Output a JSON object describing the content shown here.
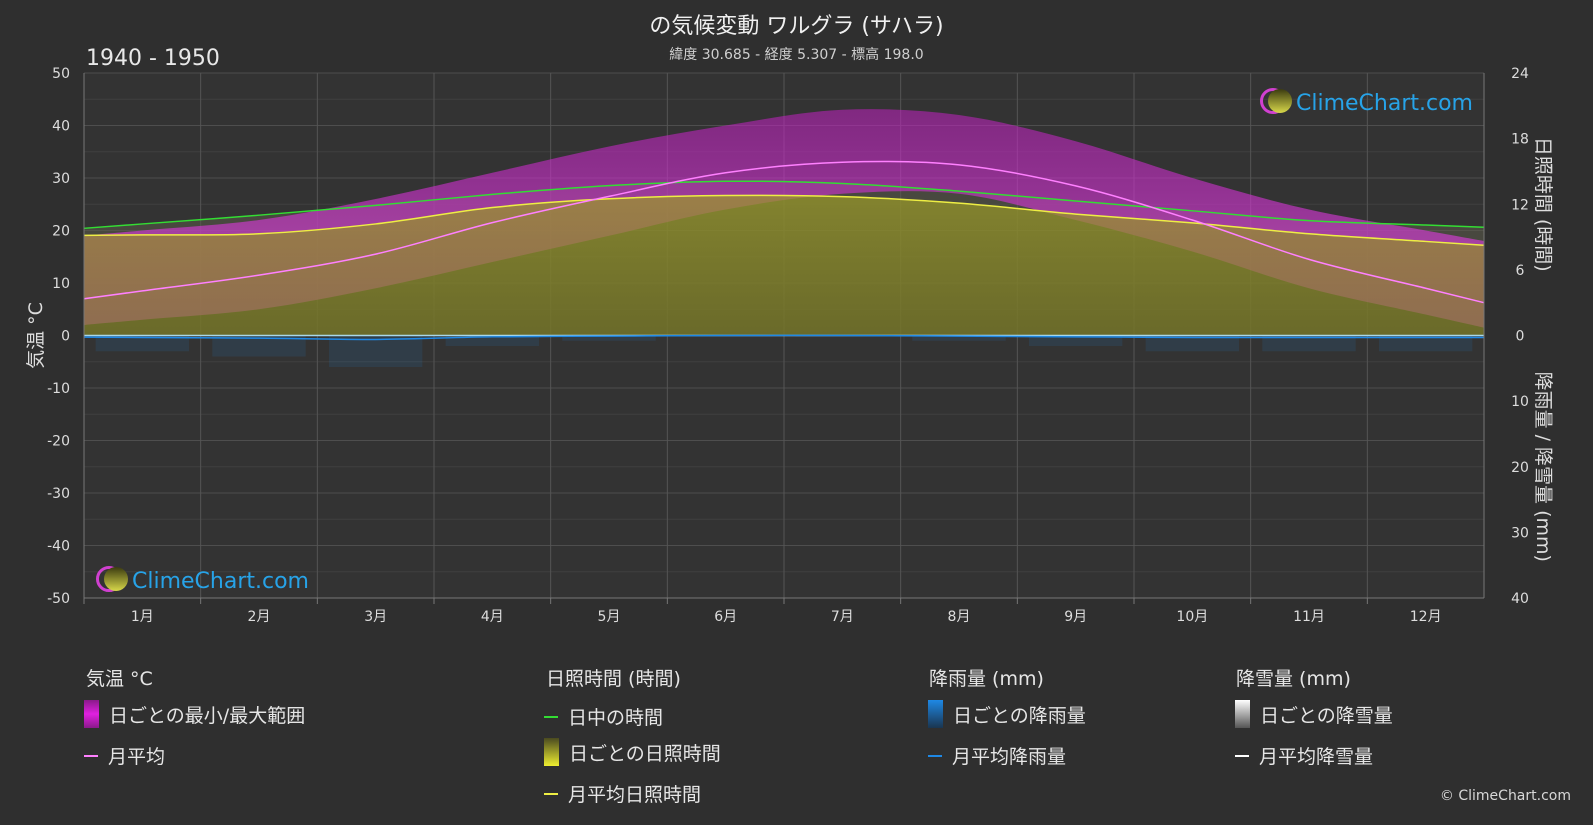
{
  "title": "の気候変動 ワルグラ (サハラ)",
  "subtitle": "緯度 30.685 - 経度 5.307 - 標高 198.0",
  "period": "1940 - 1950",
  "left_axis_label": "気温 °C",
  "right_axis_top_label": "日照時間 (時間)",
  "right_axis_bottom_label": "降雨量 / 降雪量 (mm)",
  "logo_text": "ClimeChart.com",
  "copyright": "© ClimeChart.com",
  "legend": {
    "temp": {
      "header": "気温 °C",
      "range": "日ごとの最小/最大範囲",
      "mean": "月平均"
    },
    "sun": {
      "header": "日照時間 (時間)",
      "daylight": "日中の時間",
      "daily": "日ごとの日照時間",
      "mean": "月平均日照時間"
    },
    "rain": {
      "header": "降雨量 (mm)",
      "daily": "日ごとの降雨量",
      "mean": "月平均降雨量"
    },
    "snow": {
      "header": "降雪量 (mm)",
      "daily": "日ごとの降雪量",
      "mean": "月平均降雪量"
    }
  },
  "colors": {
    "background": "#2f2f2f",
    "temp_range": "#e020e0",
    "temp_mean": "#ff80ff",
    "daylight": "#33dd33",
    "sunshine": "#8c8c22",
    "sunshine_mean": "#eeee44",
    "rain": "#1e88e5",
    "snow": "#ffffff",
    "logo": "#27a3e8"
  },
  "chart_data": {
    "type": "area",
    "x_categories": [
      "1月",
      "2月",
      "3月",
      "4月",
      "5月",
      "6月",
      "7月",
      "8月",
      "9月",
      "10月",
      "11月",
      "12月"
    ],
    "temperature_axis": {
      "range": [
        -50,
        50
      ],
      "ticks": [
        50,
        40,
        30,
        20,
        10,
        0,
        -10,
        -20,
        -30,
        -40,
        -50
      ]
    },
    "sunshine_axis": {
      "range": [
        0,
        24
      ],
      "ticks": [
        24,
        18,
        12,
        6,
        0
      ]
    },
    "precip_axis": {
      "range": [
        0,
        40
      ],
      "ticks": [
        0,
        10,
        20,
        30,
        40
      ]
    },
    "series": [
      {
        "name": "月平均",
        "unit": "°C",
        "values": [
          8.5,
          11.5,
          15.5,
          21.5,
          26.5,
          31,
          33,
          32.5,
          28.5,
          22,
          14.5,
          9
        ]
      },
      {
        "name": "日中の時間",
        "unit": "h",
        "values": [
          10.2,
          11.0,
          11.9,
          12.9,
          13.7,
          14.1,
          13.9,
          13.2,
          12.3,
          11.4,
          10.5,
          10.1
        ]
      },
      {
        "name": "月平均日照時間",
        "unit": "h",
        "values": [
          9.2,
          9.3,
          10.2,
          11.7,
          12.5,
          12.8,
          12.7,
          12.1,
          11.1,
          10.3,
          9.3,
          8.6
        ]
      },
      {
        "name": "月平均降雨量",
        "unit": "mm",
        "values": [
          0.3,
          0.4,
          0.6,
          0.2,
          0.1,
          0.0,
          0.0,
          0.1,
          0.2,
          0.3,
          0.3,
          0.3
        ]
      },
      {
        "name": "月平均降雪量",
        "unit": "mm",
        "values": [
          0,
          0,
          0,
          0,
          0,
          0,
          0,
          0,
          0,
          0,
          0,
          0
        ]
      }
    ],
    "daily_temperature_range": {
      "min": [
        3,
        5,
        9,
        14,
        19,
        24,
        27,
        27,
        22,
        16,
        9,
        4
      ],
      "max": [
        20,
        22,
        26,
        31,
        36,
        40,
        43,
        42,
        37,
        30,
        24,
        20
      ]
    },
    "grid": true
  }
}
